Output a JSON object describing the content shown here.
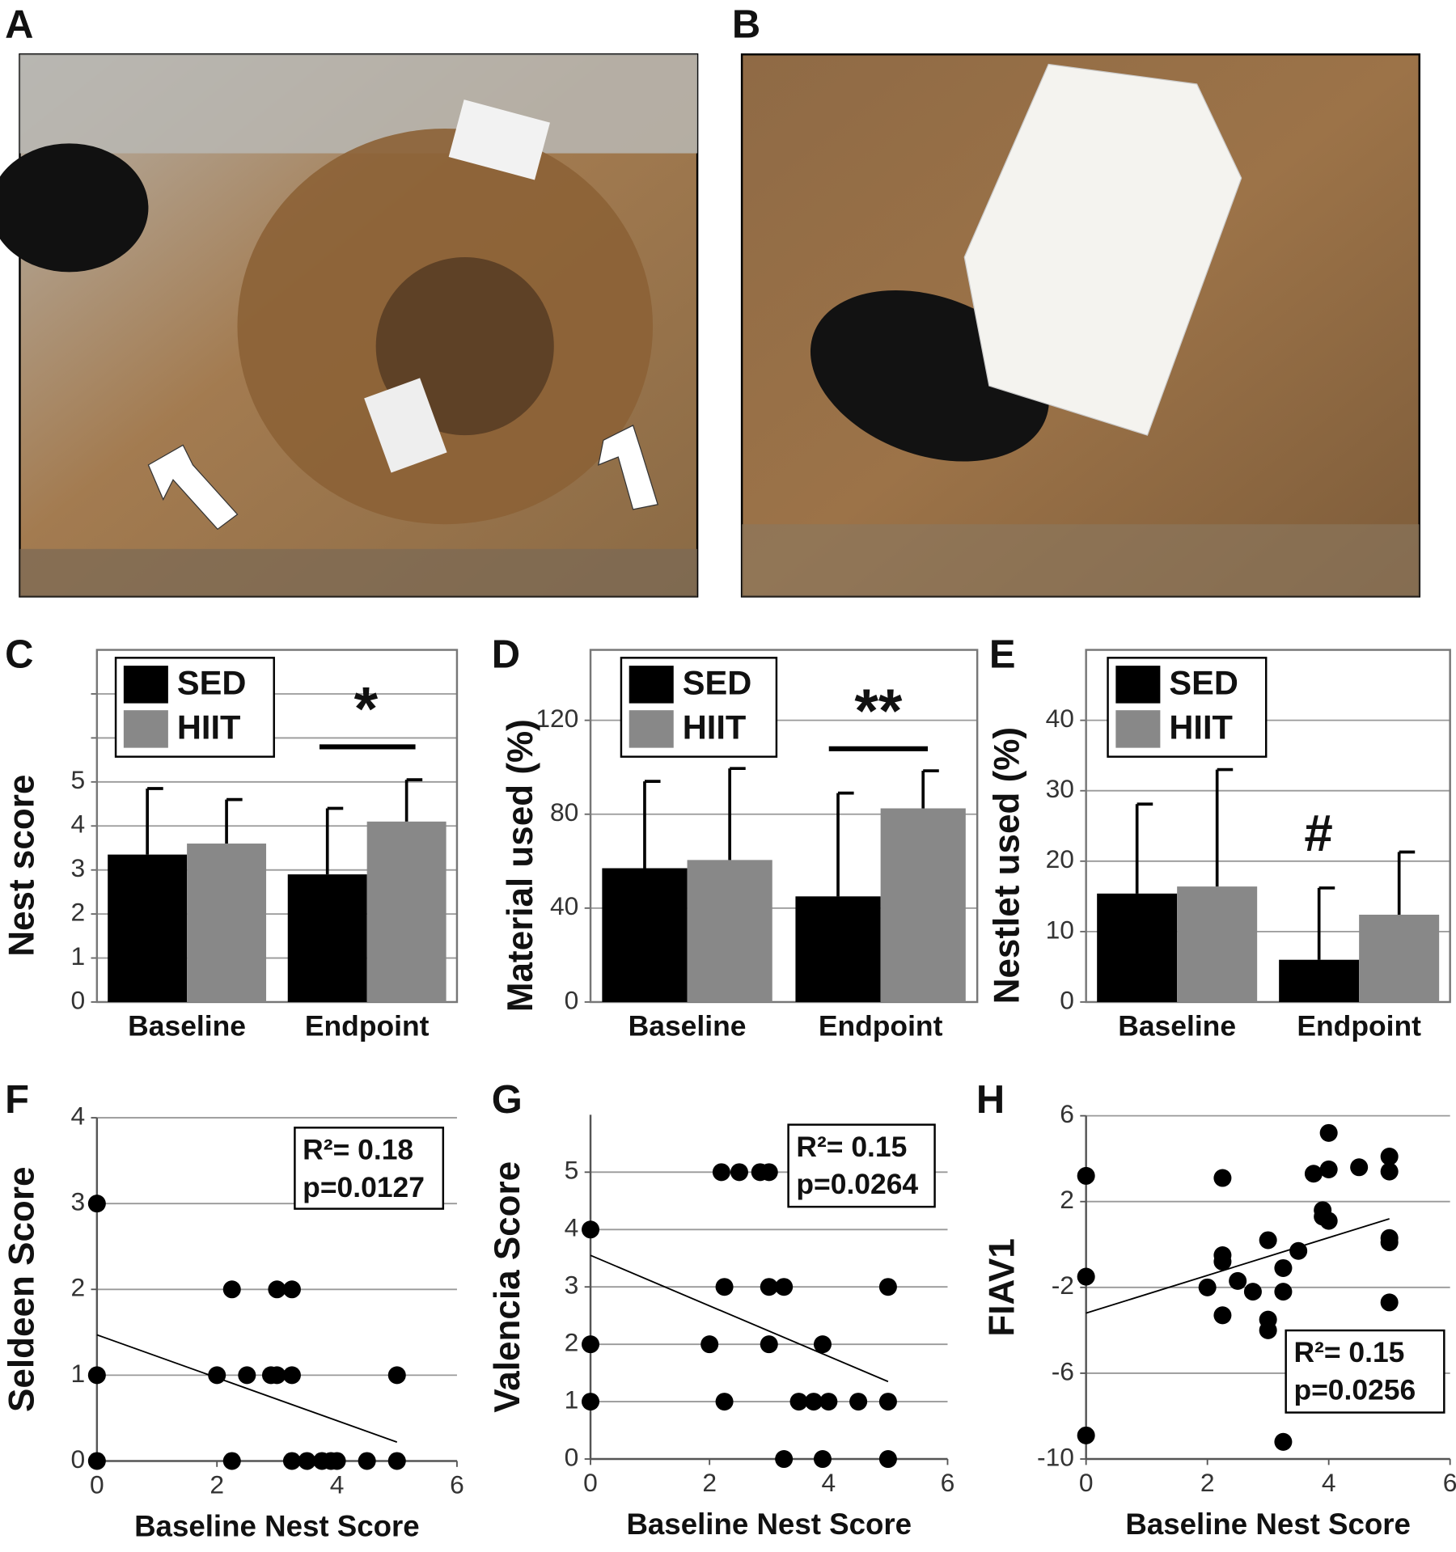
{
  "photo_panels": [
    {
      "label": "A"
    },
    {
      "label": "B"
    }
  ],
  "chart_data": [
    {
      "type": "bar",
      "panel": "C",
      "y_label": "Nest score",
      "categories": [
        "Baseline",
        "Endpoint"
      ],
      "series": [
        {
          "name": "SED",
          "color": "#000000",
          "values": [
            3.35,
            2.9
          ],
          "errors": [
            1.5,
            1.5
          ]
        },
        {
          "name": "HIIT",
          "color": "#888888",
          "values": [
            3.6,
            4.1
          ],
          "errors": [
            1.0,
            0.95
          ]
        }
      ],
      "ylim": [
        0,
        8
      ],
      "yticks": [
        0,
        1,
        2,
        3,
        4,
        5
      ],
      "minor_yticks": [
        6,
        7
      ],
      "grid": true,
      "legend": "upper left",
      "annotation": "*"
    },
    {
      "type": "bar",
      "panel": "D",
      "y_label": "Material used (%)",
      "categories": [
        "Baseline",
        "Endpoint"
      ],
      "series": [
        {
          "name": "SED",
          "color": "#000000",
          "values": [
            57,
            45
          ],
          "errors": [
            37,
            44
          ]
        },
        {
          "name": "HIIT",
          "color": "#888888",
          "values": [
            60.5,
            82.5
          ],
          "errors": [
            39,
            16
          ]
        }
      ],
      "ylim": [
        0,
        150
      ],
      "yticks": [
        0,
        40,
        80,
        120
      ],
      "grid": true,
      "legend": "upper left",
      "annotation": "**"
    },
    {
      "type": "bar",
      "panel": "E",
      "y_label": "Nestlet used (%)",
      "categories": [
        "Baseline",
        "Endpoint"
      ],
      "series": [
        {
          "name": "SED",
          "color": "#000000",
          "values": [
            15.4,
            6
          ],
          "errors": [
            12.7,
            10.2
          ]
        },
        {
          "name": "HIIT",
          "color": "#888888",
          "values": [
            16.4,
            12.4
          ],
          "errors": [
            16.6,
            8.9
          ]
        }
      ],
      "ylim": [
        0,
        50
      ],
      "yticks": [
        0,
        10,
        20,
        30,
        40
      ],
      "grid": true,
      "legend": "upper left",
      "annotation": "#"
    },
    {
      "type": "scatter",
      "panel": "F",
      "x_label": "Baseline Nest Score",
      "y_label": "Seldeen Score",
      "color": "#000000",
      "x": [
        0,
        0,
        0,
        2,
        2.25,
        2.25,
        2.5,
        2.9,
        3,
        3,
        3.25,
        3.25,
        3.25,
        3.5,
        3.75,
        3.9,
        4,
        4.5,
        5,
        5
      ],
      "values": [
        3,
        1,
        0,
        1,
        2,
        0,
        1,
        1,
        1,
        2,
        1,
        2,
        0,
        0,
        0,
        0,
        0,
        0,
        0,
        1
      ],
      "fit_line": {
        "x": [
          0,
          5
        ],
        "y": [
          1.47,
          0.22
        ]
      },
      "xlim": [
        0,
        6
      ],
      "xticks": [
        0,
        2,
        4,
        6
      ],
      "ylim": [
        0,
        4
      ],
      "yticks": [
        0,
        1,
        2,
        3,
        4
      ],
      "grid": true,
      "annotation": [
        "R²= 0.18",
        "p=0.0127"
      ]
    },
    {
      "type": "scatter",
      "panel": "G",
      "x_label": "Baseline Nest Score",
      "y_label": "Valencia Score",
      "color": "#000000",
      "x": [
        2.2,
        2.5,
        2.85,
        3,
        0,
        2.25,
        3,
        3.25,
        5,
        0,
        2,
        3,
        3.9,
        0,
        2.25,
        3.5,
        3.75,
        4,
        4.5,
        5,
        3.25,
        3.9,
        5
      ],
      "values": [
        5,
        5,
        5,
        5,
        4,
        3,
        3,
        3,
        3,
        2,
        2,
        2,
        2,
        1,
        1,
        1,
        1,
        1,
        1,
        1,
        0,
        0,
        0
      ],
      "fit_line": {
        "x": [
          0,
          5
        ],
        "y": [
          3.55,
          1.35
        ]
      },
      "xlim": [
        0,
        6
      ],
      "xticks": [
        0,
        2,
        4,
        6
      ],
      "ylim": [
        0,
        6
      ],
      "yticks": [
        0,
        1,
        2,
        3,
        4,
        5
      ],
      "grid": true,
      "annotation": [
        "R²= 0.15",
        "p=0.0264"
      ]
    },
    {
      "type": "scatter",
      "panel": "H",
      "x_label": "Baseline Nest Score",
      "y_label": "FIAV1",
      "color": "#000000",
      "x": [
        0,
        0,
        0,
        2,
        2.25,
        2.25,
        2.25,
        2.25,
        2.5,
        2.75,
        3,
        3,
        3,
        3.25,
        3.25,
        3.25,
        3.5,
        3.75,
        3.9,
        3.9,
        4,
        4,
        4,
        4.5,
        5,
        5,
        5,
        5,
        5
      ],
      "values": [
        3.2,
        -1.5,
        -8.9,
        -2,
        3.1,
        -0.5,
        -0.8,
        -3.3,
        -1.7,
        -2.2,
        0.2,
        -3.5,
        -4,
        -1.1,
        -2.2,
        -9.2,
        -0.3,
        3.3,
        1.6,
        1.3,
        3.5,
        5.2,
        1.1,
        3.6,
        4.1,
        3.4,
        0.1,
        0.3,
        -2.7
      ],
      "fit_line": {
        "x": [
          0,
          5
        ],
        "y": [
          -3.2,
          1.2
        ]
      },
      "xlim": [
        0,
        6
      ],
      "xticks": [
        0,
        2,
        4,
        6
      ],
      "ylim": [
        -10,
        6
      ],
      "yticks": [
        -10,
        -6,
        -2,
        2,
        6
      ],
      "grid": true,
      "annotation": [
        "R²= 0.15",
        "p=0.0256"
      ]
    }
  ]
}
